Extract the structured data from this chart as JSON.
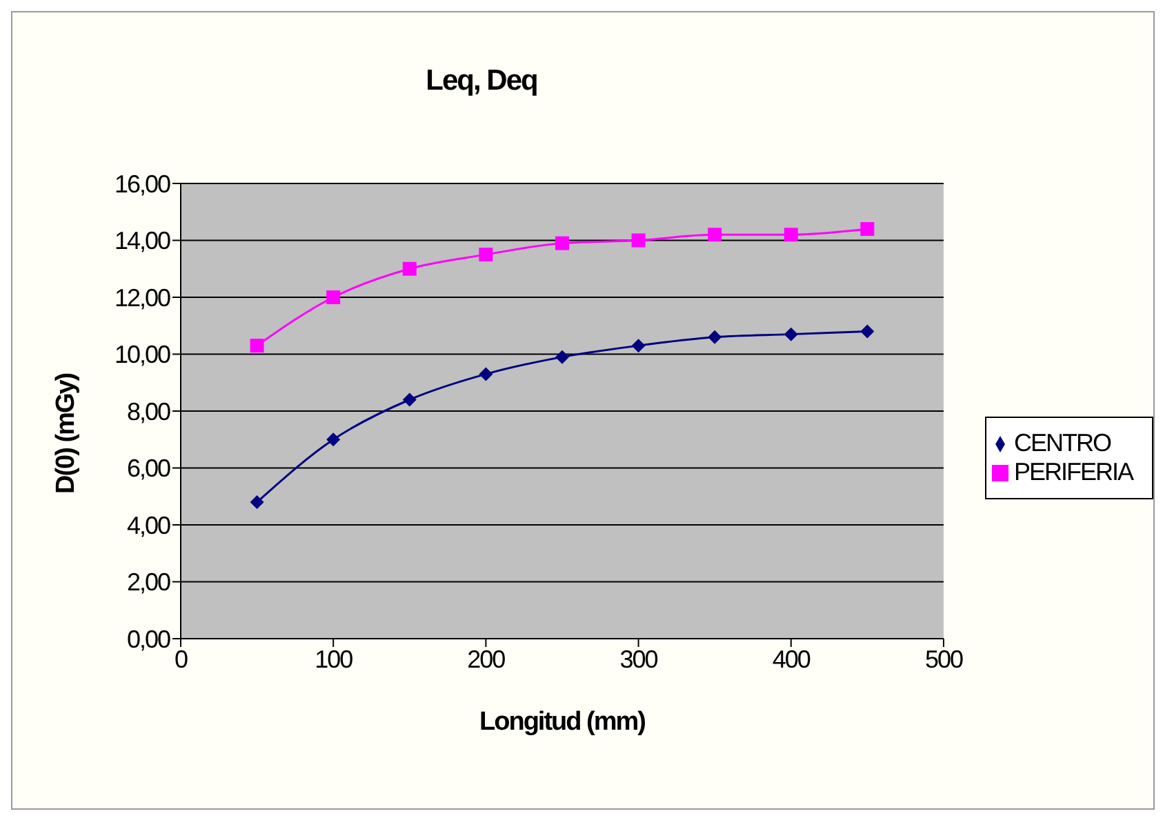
{
  "chart_data": {
    "type": "line",
    "title": "Leq, Deq",
    "xlabel": "Longitud (mm)",
    "ylabel": "D(0)  (mGy)",
    "x": [
      50,
      100,
      150,
      200,
      250,
      300,
      350,
      400,
      450
    ],
    "series": [
      {
        "name": "CENTRO",
        "color": "#000080",
        "marker": "diamond",
        "values": [
          4.8,
          7.0,
          8.4,
          9.3,
          9.9,
          10.3,
          10.6,
          10.7,
          10.8
        ]
      },
      {
        "name": "PERIFERIA",
        "color": "#ff00ff",
        "marker": "square",
        "values": [
          10.3,
          12.0,
          13.0,
          13.5,
          13.9,
          14.0,
          14.2,
          14.2,
          14.4
        ]
      }
    ],
    "xlim": [
      0,
      500
    ],
    "xticks": [
      0,
      100,
      200,
      300,
      400,
      500
    ],
    "ylim": [
      0,
      16
    ],
    "yticks": [
      {
        "value": 0,
        "label": "0,00"
      },
      {
        "value": 2,
        "label": "2,00"
      },
      {
        "value": 4,
        "label": "4,00"
      },
      {
        "value": 6,
        "label": "6,00"
      },
      {
        "value": 8,
        "label": "8,00"
      },
      {
        "value": 10,
        "label": "10,00"
      },
      {
        "value": 12,
        "label": "12,00"
      },
      {
        "value": 14,
        "label": "14,00"
      },
      {
        "value": 16,
        "label": "16,00"
      }
    ],
    "grid": "y",
    "legend": "right",
    "line_style": "solid"
  }
}
